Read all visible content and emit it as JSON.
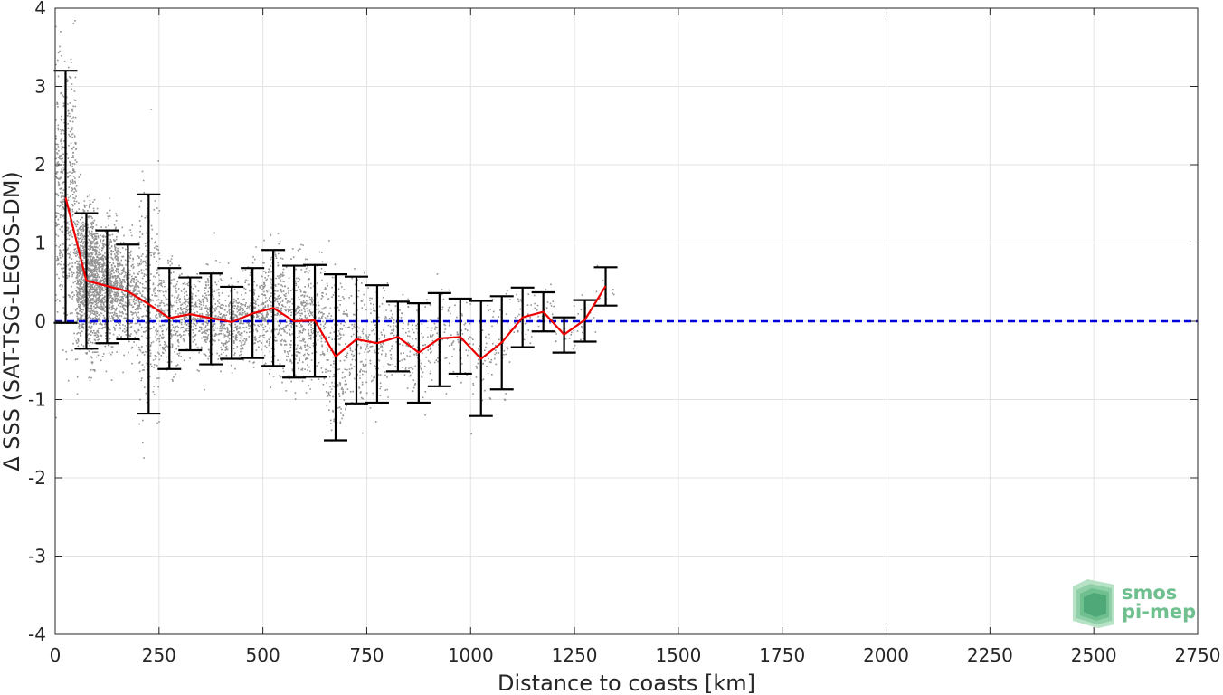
{
  "chart_data": {
    "type": "scatter",
    "title": "",
    "xlabel": "Distance to coasts [km]",
    "ylabel": "Δ SSS (SAT-TSG-LEGOS-DM)",
    "xlim": [
      0,
      2750
    ],
    "ylim": [
      -4,
      4
    ],
    "x_ticks": [
      0,
      250,
      500,
      750,
      1000,
      1250,
      1500,
      1750,
      2000,
      2250,
      2500,
      2750
    ],
    "y_ticks": [
      -4,
      -3,
      -2,
      -1,
      0,
      1,
      2,
      3,
      4
    ],
    "grid": true,
    "legend": "none",
    "reference_line": {
      "y": 0,
      "color": "#0000dd",
      "style": "dashed"
    },
    "binned_mean": {
      "color": "#ee0000",
      "x": [
        25,
        75,
        125,
        175,
        225,
        275,
        325,
        375,
        425,
        475,
        525,
        575,
        625,
        675,
        725,
        775,
        825,
        875,
        925,
        975,
        1025,
        1075,
        1125,
        1175,
        1225,
        1275,
        1325
      ],
      "mean": [
        1.58,
        0.52,
        0.45,
        0.38,
        0.22,
        0.04,
        0.09,
        0.04,
        -0.01,
        0.1,
        0.17,
        0.0,
        0.01,
        -0.45,
        -0.23,
        -0.28,
        -0.2,
        -0.4,
        -0.22,
        -0.2,
        -0.48,
        -0.27,
        0.05,
        0.12,
        -0.17,
        0.02,
        0.45
      ],
      "err_low": [
        -0.02,
        -0.35,
        -0.28,
        -0.23,
        -1.18,
        -0.61,
        -0.37,
        -0.55,
        -0.48,
        -0.47,
        -0.57,
        -0.72,
        -0.71,
        -1.52,
        -1.05,
        -1.04,
        -0.64,
        -1.04,
        -0.83,
        -0.67,
        -1.21,
        -0.87,
        -0.33,
        -0.13,
        -0.4,
        -0.26,
        0.2
      ],
      "err_high": [
        3.2,
        1.38,
        1.16,
        0.98,
        1.62,
        0.68,
        0.56,
        0.61,
        0.44,
        0.68,
        0.91,
        0.71,
        0.72,
        0.6,
        0.57,
        0.46,
        0.25,
        0.23,
        0.36,
        0.29,
        0.26,
        0.32,
        0.43,
        0.37,
        0.05,
        0.27,
        0.69
      ]
    },
    "scatter_color": "#808080",
    "error_bar_color": "#000000"
  },
  "logo": {
    "line1": "smos",
    "line2": "pi-mep",
    "color": "#6fbf8f"
  }
}
